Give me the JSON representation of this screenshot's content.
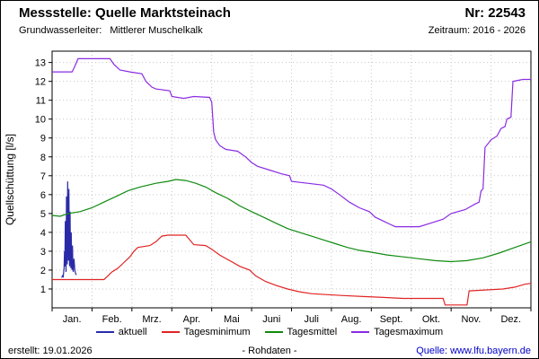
{
  "header": {
    "station_label": "Messstelle: Quelle Marktsteinach",
    "number_label": "Nr: 22543",
    "aquifer_label": "Grundwasserleiter:",
    "aquifer_value": "Mittlerer Muschelkalk",
    "period_label": "Zeitraum: 2016 - 2026"
  },
  "footer": {
    "created": "erstellt:  19.01.2026",
    "center": "- Rohdaten -",
    "source": "Quelle: www.lfu.bayern.de"
  },
  "chart_data": {
    "type": "line",
    "title": "",
    "xlabel": "",
    "ylabel": "Quellschüttung [l/s]",
    "ylim": [
      0,
      13.6
    ],
    "yticks": [
      1,
      2,
      3,
      4,
      5,
      6,
      7,
      8,
      9,
      10,
      11,
      12,
      13
    ],
    "categories": [
      "Jan.",
      "Feb.",
      "Mrz.",
      "Apr.",
      "Mai",
      "Juni",
      "Juli",
      "Aug.",
      "Sept.",
      "Okt.",
      "Nov.",
      "Dez."
    ],
    "x_unit": "month (0-12, fractional)",
    "grid": true,
    "legend_position": "bottom",
    "series": [
      {
        "name": "aktuell",
        "color": "#2a2aa8",
        "points": [
          [
            0.24,
            1.6
          ],
          [
            0.26,
            1.7
          ],
          [
            0.28,
            1.65
          ],
          [
            0.3,
            2.1
          ],
          [
            0.31,
            3.0
          ],
          [
            0.32,
            2.2
          ],
          [
            0.33,
            4.6
          ],
          [
            0.34,
            2.7
          ],
          [
            0.35,
            1.9
          ],
          [
            0.36,
            5.9
          ],
          [
            0.37,
            3.2
          ],
          [
            0.38,
            2.3
          ],
          [
            0.39,
            6.7
          ],
          [
            0.4,
            4.3
          ],
          [
            0.41,
            2.5
          ],
          [
            0.42,
            6.3
          ],
          [
            0.43,
            3.6
          ],
          [
            0.44,
            2.2
          ],
          [
            0.45,
            5.1
          ],
          [
            0.46,
            2.9
          ],
          [
            0.47,
            2.1
          ],
          [
            0.48,
            4.0
          ],
          [
            0.49,
            2.5
          ],
          [
            0.5,
            2.0
          ],
          [
            0.51,
            3.3
          ],
          [
            0.52,
            2.3
          ],
          [
            0.53,
            1.9
          ],
          [
            0.55,
            2.6
          ],
          [
            0.57,
            2.0
          ],
          [
            0.59,
            1.8
          ],
          [
            0.61,
            1.75
          ]
        ]
      },
      {
        "name": "Tagesminimum",
        "color": "#e02424",
        "points": [
          [
            0,
            1.5
          ],
          [
            1.3,
            1.5
          ],
          [
            1.4,
            1.7
          ],
          [
            1.5,
            1.9
          ],
          [
            1.65,
            2.1
          ],
          [
            1.8,
            2.4
          ],
          [
            1.95,
            2.7
          ],
          [
            2.05,
            3.0
          ],
          [
            2.15,
            3.2
          ],
          [
            2.45,
            3.3
          ],
          [
            2.6,
            3.5
          ],
          [
            2.75,
            3.8
          ],
          [
            2.9,
            3.85
          ],
          [
            3.35,
            3.85
          ],
          [
            3.45,
            3.6
          ],
          [
            3.55,
            3.35
          ],
          [
            3.85,
            3.3
          ],
          [
            4.0,
            3.1
          ],
          [
            4.2,
            2.8
          ],
          [
            4.45,
            2.5
          ],
          [
            4.7,
            2.2
          ],
          [
            4.95,
            2.0
          ],
          [
            5.1,
            1.7
          ],
          [
            5.35,
            1.4
          ],
          [
            5.6,
            1.2
          ],
          [
            5.9,
            1.0
          ],
          [
            6.2,
            0.85
          ],
          [
            6.5,
            0.75
          ],
          [
            6.9,
            0.7
          ],
          [
            7.3,
            0.65
          ],
          [
            7.8,
            0.6
          ],
          [
            8.3,
            0.55
          ],
          [
            8.8,
            0.5
          ],
          [
            9.8,
            0.5
          ],
          [
            9.85,
            0.15
          ],
          [
            10.4,
            0.15
          ],
          [
            10.45,
            0.9
          ],
          [
            10.9,
            0.95
          ],
          [
            11.3,
            1.0
          ],
          [
            11.6,
            1.1
          ],
          [
            11.85,
            1.25
          ],
          [
            12,
            1.3
          ]
        ]
      },
      {
        "name": "Tagesmittel",
        "color": "#0f8a0f",
        "points": [
          [
            0,
            4.9
          ],
          [
            0.2,
            4.85
          ],
          [
            0.4,
            5.0
          ],
          [
            0.7,
            5.1
          ],
          [
            1.0,
            5.3
          ],
          [
            1.3,
            5.6
          ],
          [
            1.6,
            5.9
          ],
          [
            1.9,
            6.2
          ],
          [
            2.2,
            6.4
          ],
          [
            2.6,
            6.6
          ],
          [
            2.9,
            6.7
          ],
          [
            3.1,
            6.8
          ],
          [
            3.35,
            6.75
          ],
          [
            3.6,
            6.6
          ],
          [
            3.85,
            6.4
          ],
          [
            4.1,
            6.1
          ],
          [
            4.4,
            5.8
          ],
          [
            4.7,
            5.4
          ],
          [
            5.0,
            5.1
          ],
          [
            5.3,
            4.8
          ],
          [
            5.6,
            4.5
          ],
          [
            5.9,
            4.2
          ],
          [
            6.2,
            4.0
          ],
          [
            6.5,
            3.8
          ],
          [
            6.8,
            3.6
          ],
          [
            7.1,
            3.4
          ],
          [
            7.4,
            3.2
          ],
          [
            7.7,
            3.05
          ],
          [
            8.0,
            2.95
          ],
          [
            8.4,
            2.8
          ],
          [
            8.8,
            2.7
          ],
          [
            9.2,
            2.6
          ],
          [
            9.6,
            2.5
          ],
          [
            10.0,
            2.45
          ],
          [
            10.4,
            2.5
          ],
          [
            10.8,
            2.65
          ],
          [
            11.2,
            2.9
          ],
          [
            11.6,
            3.2
          ],
          [
            12,
            3.5
          ]
        ]
      },
      {
        "name": "Tagesmaximum",
        "color": "#8a2be2",
        "points": [
          [
            0,
            12.5
          ],
          [
            0.5,
            12.5
          ],
          [
            0.55,
            12.7
          ],
          [
            0.65,
            13.2
          ],
          [
            1.45,
            13.2
          ],
          [
            1.55,
            12.9
          ],
          [
            1.7,
            12.6
          ],
          [
            1.95,
            12.5
          ],
          [
            2.25,
            12.4
          ],
          [
            2.35,
            12.0
          ],
          [
            2.5,
            11.7
          ],
          [
            2.6,
            11.6
          ],
          [
            2.95,
            11.5
          ],
          [
            3.0,
            11.2
          ],
          [
            3.3,
            11.1
          ],
          [
            3.55,
            11.2
          ],
          [
            3.95,
            11.15
          ],
          [
            4.0,
            10.9
          ],
          [
            4.05,
            9.3
          ],
          [
            4.1,
            8.9
          ],
          [
            4.2,
            8.6
          ],
          [
            4.35,
            8.4
          ],
          [
            4.65,
            8.3
          ],
          [
            4.85,
            8.0
          ],
          [
            5.0,
            7.7
          ],
          [
            5.15,
            7.5
          ],
          [
            5.45,
            7.3
          ],
          [
            5.75,
            7.1
          ],
          [
            5.95,
            7.0
          ],
          [
            6.0,
            6.7
          ],
          [
            6.4,
            6.6
          ],
          [
            6.8,
            6.5
          ],
          [
            7.0,
            6.3
          ],
          [
            7.2,
            6.0
          ],
          [
            7.45,
            5.6
          ],
          [
            7.7,
            5.3
          ],
          [
            7.95,
            5.1
          ],
          [
            8.1,
            4.8
          ],
          [
            8.3,
            4.6
          ],
          [
            8.5,
            4.4
          ],
          [
            8.6,
            4.3
          ],
          [
            9.2,
            4.3
          ],
          [
            9.5,
            4.5
          ],
          [
            9.8,
            4.7
          ],
          [
            10.0,
            5.0
          ],
          [
            10.35,
            5.2
          ],
          [
            10.6,
            5.5
          ],
          [
            10.7,
            5.6
          ],
          [
            10.75,
            6.2
          ],
          [
            10.8,
            6.3
          ],
          [
            10.85,
            8.5
          ],
          [
            11.0,
            8.9
          ],
          [
            11.15,
            9.1
          ],
          [
            11.25,
            9.5
          ],
          [
            11.35,
            9.6
          ],
          [
            11.4,
            10.0
          ],
          [
            11.5,
            10.1
          ],
          [
            11.55,
            12.0
          ],
          [
            11.8,
            12.1
          ],
          [
            12,
            12.1
          ]
        ]
      }
    ]
  }
}
